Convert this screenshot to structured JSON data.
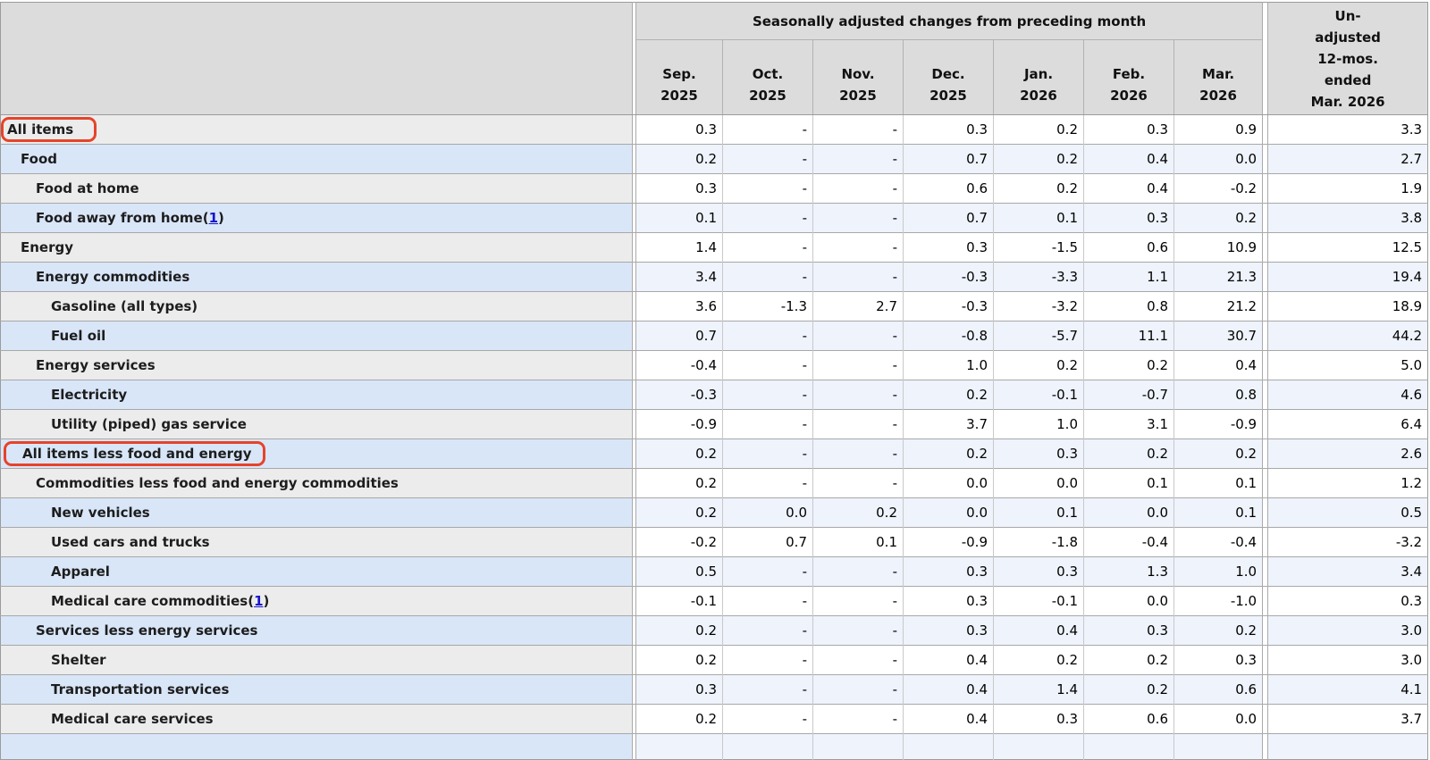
{
  "colors": {
    "header_background": "#dcdcdc",
    "row_gray_label": "#ececec",
    "row_gray_value": "#ffffff",
    "row_blue_label": "#d9e6f8",
    "row_blue_value": "#eef3fc",
    "highlight_box": "#e6432a",
    "footnote_link": "#1515cc"
  },
  "footnote_wrap": {
    "open": "(",
    "close": ")"
  },
  "annotations": {
    "highlight_boxes_around_rows": [
      "All items",
      "All items less food and energy"
    ],
    "box_color": "#e6432a"
  },
  "chart_data": {
    "type": "table",
    "title": "Seasonally adjusted changes from preceding month",
    "group_header": "Seasonally adjusted changes from preceding month",
    "unadjusted_header": {
      "lines": [
        "Un-",
        "adjusted",
        "12-mos.",
        "ended",
        "Mar. 2026"
      ],
      "full": "Un-adjusted 12-mos. ended Mar. 2026"
    },
    "columns": [
      {
        "month": "Sep.",
        "year": "2025"
      },
      {
        "month": "Oct.",
        "year": "2025"
      },
      {
        "month": "Nov.",
        "year": "2025"
      },
      {
        "month": "Dec.",
        "year": "2025"
      },
      {
        "month": "Jan.",
        "year": "2026"
      },
      {
        "month": "Feb.",
        "year": "2026"
      },
      {
        "month": "Mar.",
        "year": "2026"
      }
    ],
    "missing_value_symbol": "-",
    "rows": [
      {
        "label": "All items",
        "indent": 0,
        "highlighted": true,
        "values": [
          "0.3",
          "-",
          "-",
          "0.3",
          "0.2",
          "0.3",
          "0.9"
        ],
        "unadjusted_12mo": "3.3"
      },
      {
        "label": "Food",
        "indent": 1,
        "values": [
          "0.2",
          "-",
          "-",
          "0.7",
          "0.2",
          "0.4",
          "0.0"
        ],
        "unadjusted_12mo": "2.7"
      },
      {
        "label": "Food at home",
        "indent": 2,
        "values": [
          "0.3",
          "-",
          "-",
          "0.6",
          "0.2",
          "0.4",
          "-0.2"
        ],
        "unadjusted_12mo": "1.9"
      },
      {
        "label": "Food away from home",
        "indent": 2,
        "footnote": "1",
        "values": [
          "0.1",
          "-",
          "-",
          "0.7",
          "0.1",
          "0.3",
          "0.2"
        ],
        "unadjusted_12mo": "3.8"
      },
      {
        "label": "Energy",
        "indent": 1,
        "values": [
          "1.4",
          "-",
          "-",
          "0.3",
          "-1.5",
          "0.6",
          "10.9"
        ],
        "unadjusted_12mo": "12.5"
      },
      {
        "label": "Energy commodities",
        "indent": 2,
        "values": [
          "3.4",
          "-",
          "-",
          "-0.3",
          "-3.3",
          "1.1",
          "21.3"
        ],
        "unadjusted_12mo": "19.4"
      },
      {
        "label": "Gasoline (all types)",
        "indent": 3,
        "values": [
          "3.6",
          "-1.3",
          "2.7",
          "-0.3",
          "-3.2",
          "0.8",
          "21.2"
        ],
        "unadjusted_12mo": "18.9"
      },
      {
        "label": "Fuel oil",
        "indent": 3,
        "values": [
          "0.7",
          "-",
          "-",
          "-0.8",
          "-5.7",
          "11.1",
          "30.7"
        ],
        "unadjusted_12mo": "44.2"
      },
      {
        "label": "Energy services",
        "indent": 2,
        "values": [
          "-0.4",
          "-",
          "-",
          "1.0",
          "0.2",
          "0.2",
          "0.4"
        ],
        "unadjusted_12mo": "5.0"
      },
      {
        "label": "Electricity",
        "indent": 3,
        "values": [
          "-0.3",
          "-",
          "-",
          "0.2",
          "-0.1",
          "-0.7",
          "0.8"
        ],
        "unadjusted_12mo": "4.6"
      },
      {
        "label": "Utility (piped) gas service",
        "indent": 3,
        "values": [
          "-0.9",
          "-",
          "-",
          "3.7",
          "1.0",
          "3.1",
          "-0.9"
        ],
        "unadjusted_12mo": "6.4"
      },
      {
        "label": "All items less food and energy",
        "indent": 1,
        "highlighted": true,
        "values": [
          "0.2",
          "-",
          "-",
          "0.2",
          "0.3",
          "0.2",
          "0.2"
        ],
        "unadjusted_12mo": "2.6"
      },
      {
        "label": "Commodities less food and energy commodities",
        "indent": 2,
        "values": [
          "0.2",
          "-",
          "-",
          "0.0",
          "0.0",
          "0.1",
          "0.1"
        ],
        "unadjusted_12mo": "1.2"
      },
      {
        "label": "New vehicles",
        "indent": 3,
        "values": [
          "0.2",
          "0.0",
          "0.2",
          "0.0",
          "0.1",
          "0.0",
          "0.1"
        ],
        "unadjusted_12mo": "0.5"
      },
      {
        "label": "Used cars and trucks",
        "indent": 3,
        "values": [
          "-0.2",
          "0.7",
          "0.1",
          "-0.9",
          "-1.8",
          "-0.4",
          "-0.4"
        ],
        "unadjusted_12mo": "-3.2"
      },
      {
        "label": "Apparel",
        "indent": 3,
        "values": [
          "0.5",
          "-",
          "-",
          "0.3",
          "0.3",
          "1.3",
          "1.0"
        ],
        "unadjusted_12mo": "3.4"
      },
      {
        "label": "Medical care commodities",
        "indent": 3,
        "footnote": "1",
        "values": [
          "-0.1",
          "-",
          "-",
          "0.3",
          "-0.1",
          "0.0",
          "-1.0"
        ],
        "unadjusted_12mo": "0.3"
      },
      {
        "label": "Services less energy services",
        "indent": 2,
        "values": [
          "0.2",
          "-",
          "-",
          "0.3",
          "0.4",
          "0.3",
          "0.2"
        ],
        "unadjusted_12mo": "3.0"
      },
      {
        "label": "Shelter",
        "indent": 3,
        "values": [
          "0.2",
          "-",
          "-",
          "0.4",
          "0.2",
          "0.2",
          "0.3"
        ],
        "unadjusted_12mo": "3.0"
      },
      {
        "label": "Transportation services",
        "indent": 3,
        "values": [
          "0.3",
          "-",
          "-",
          "0.4",
          "1.4",
          "0.2",
          "0.6"
        ],
        "unadjusted_12mo": "4.1"
      },
      {
        "label": "Medical care services",
        "indent": 3,
        "values": [
          "0.2",
          "-",
          "-",
          "0.4",
          "0.3",
          "0.6",
          "0.0"
        ],
        "unadjusted_12mo": "3.7"
      }
    ]
  }
}
